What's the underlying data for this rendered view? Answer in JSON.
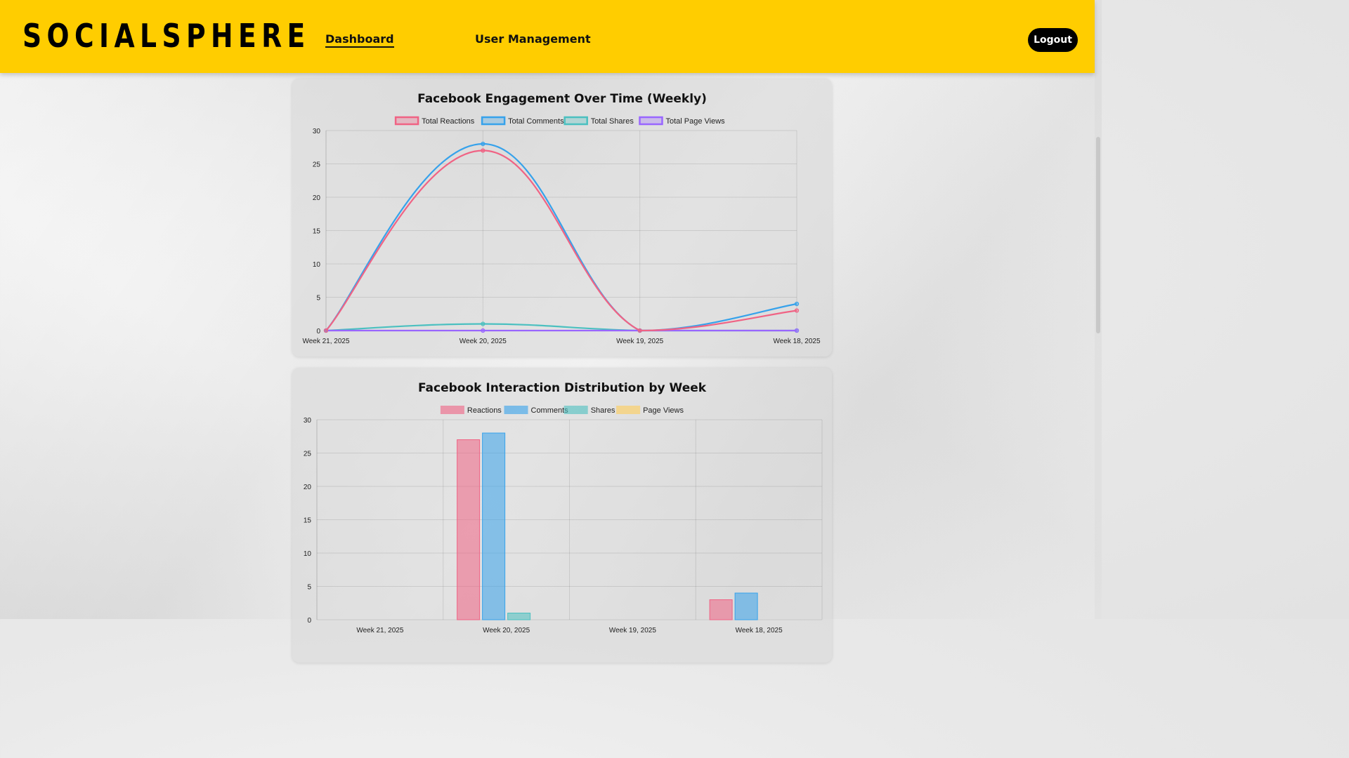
{
  "nav": {
    "brand": "SOCIALSPHERE",
    "links": [
      {
        "label": "Dashboard",
        "active": true
      },
      {
        "label": "User Management",
        "active": false
      }
    ],
    "logout_label": "Logout"
  },
  "colors": {
    "nav_bg": "#ffcd00",
    "reactions": "#f06384",
    "comments": "#36a2eb",
    "shares": "#4bc0c0",
    "page_views": "#9966ff",
    "page_views_bar": "#ffcd56"
  },
  "chart_data": [
    {
      "type": "line",
      "title": "Facebook Engagement Over Time (Weekly)",
      "categories": [
        "Week 21, 2025",
        "Week 20, 2025",
        "Week 19, 2025",
        "Week 18, 2025"
      ],
      "ylim": [
        0,
        30
      ],
      "yticks": [
        0,
        5,
        10,
        15,
        20,
        25,
        30
      ],
      "grid": true,
      "legend": "top-center",
      "series": [
        {
          "name": "Total Reactions",
          "values": [
            0,
            27,
            0,
            3
          ],
          "color": "#f06384"
        },
        {
          "name": "Total Comments",
          "values": [
            0,
            28,
            0,
            4
          ],
          "color": "#36a2eb"
        },
        {
          "name": "Total Shares",
          "values": [
            0,
            1,
            0,
            0
          ],
          "color": "#4bc0c0"
        },
        {
          "name": "Total Page Views",
          "values": [
            0,
            0,
            0,
            0
          ],
          "color": "#9966ff"
        }
      ]
    },
    {
      "type": "bar",
      "title": "Facebook Interaction Distribution by Week",
      "categories": [
        "Week 21, 2025",
        "Week 20, 2025",
        "Week 19, 2025",
        "Week 18, 2025"
      ],
      "ylim": [
        0,
        30
      ],
      "yticks": [
        0,
        5,
        10,
        15,
        20,
        25,
        30
      ],
      "grid": true,
      "legend": "top-center",
      "series": [
        {
          "name": "Reactions",
          "values": [
            0,
            27,
            0,
            3
          ],
          "color": "#f06384"
        },
        {
          "name": "Comments",
          "values": [
            0,
            28,
            0,
            4
          ],
          "color": "#36a2eb"
        },
        {
          "name": "Shares",
          "values": [
            0,
            1,
            0,
            0
          ],
          "color": "#4bc0c0"
        },
        {
          "name": "Page Views",
          "values": [
            0,
            0,
            0,
            0
          ],
          "color": "#ffcd56"
        }
      ]
    }
  ]
}
